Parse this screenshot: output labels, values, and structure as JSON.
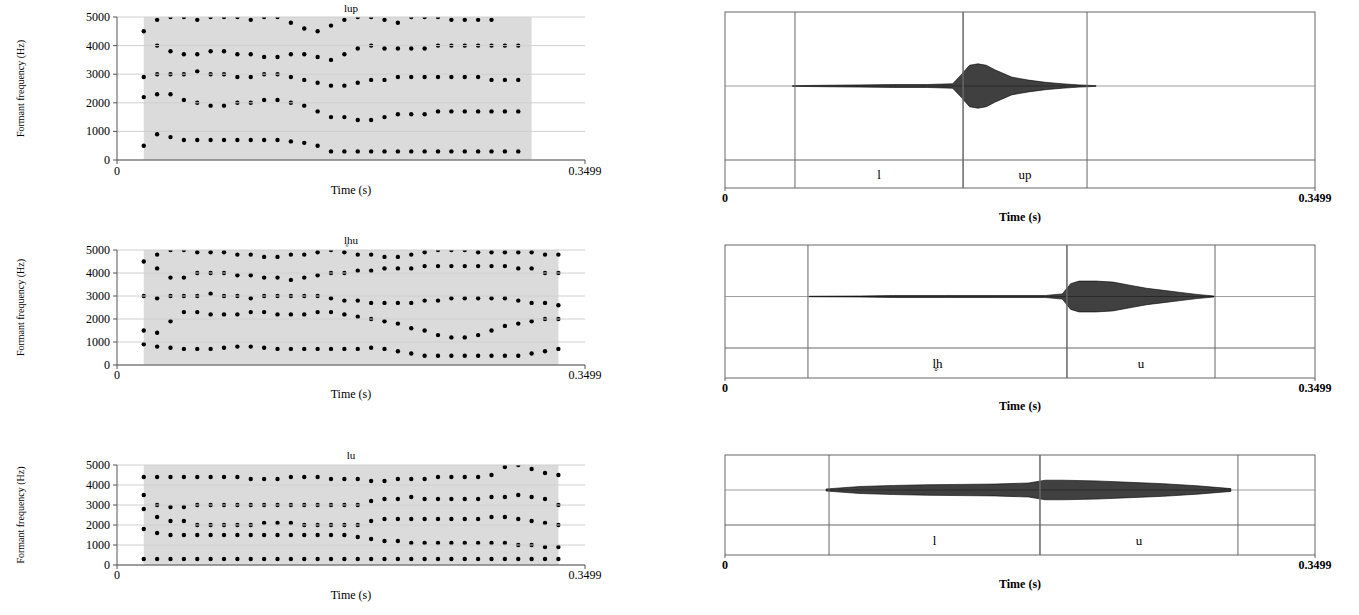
{
  "chart_data": [
    {
      "type": "scatter",
      "title": "lup",
      "x_label": "Time (s)",
      "y_label": "Formant frequency (Hz)",
      "x": [
        0.02,
        0.03,
        0.04,
        0.05,
        0.06,
        0.07,
        0.08,
        0.09,
        0.1,
        0.11,
        0.12,
        0.13,
        0.14,
        0.15,
        0.16,
        0.17,
        0.18,
        0.19,
        0.2,
        0.21,
        0.22,
        0.23,
        0.24,
        0.25,
        0.26,
        0.27,
        0.28,
        0.29,
        0.3,
        0.31
      ],
      "series": [
        {
          "color": "#000000",
          "values": [
            500,
            900,
            800,
            700,
            700,
            700,
            700,
            700,
            700,
            700,
            700,
            650,
            600,
            500,
            300,
            300,
            300,
            300,
            300,
            300,
            300,
            300,
            300,
            300,
            300,
            300,
            300,
            300,
            300,
            null
          ]
        },
        {
          "color": "#000000",
          "values": [
            2200,
            2300,
            2300,
            2100,
            2000,
            1900,
            1900,
            2000,
            2000,
            2100,
            2100,
            2000,
            1900,
            1700,
            1500,
            1500,
            1400,
            1400,
            1500,
            1600,
            1600,
            1600,
            1700,
            1700,
            1700,
            1700,
            1700,
            1700,
            1700,
            null
          ]
        },
        {
          "color": "#000000",
          "values": [
            2900,
            3000,
            3000,
            3000,
            3100,
            3000,
            3000,
            2900,
            2900,
            3000,
            3000,
            2900,
            2800,
            2700,
            2600,
            2600,
            2700,
            2800,
            2800,
            2900,
            2900,
            2900,
            2900,
            2900,
            2900,
            2900,
            2800,
            2800,
            2800,
            null
          ]
        },
        {
          "color": "#000000",
          "values": [
            4500,
            4000,
            3800,
            3700,
            3700,
            3800,
            3800,
            3700,
            3700,
            3600,
            3600,
            3700,
            3700,
            3600,
            3500,
            3700,
            3900,
            4000,
            3900,
            3900,
            3900,
            3900,
            4000,
            4000,
            4000,
            4000,
            4000,
            4000,
            4000,
            null
          ]
        },
        {
          "color": "#000000",
          "values": [
            null,
            4900,
            5000,
            5000,
            4900,
            5000,
            5000,
            5000,
            4900,
            5000,
            5000,
            4800,
            4600,
            4500,
            4700,
            4900,
            5000,
            5000,
            4900,
            4800,
            5000,
            5000,
            5000,
            4900,
            4900,
            4900,
            4900,
            null,
            null,
            null
          ]
        }
      ],
      "xlim": [
        0,
        0.3499
      ],
      "ylim": [
        0,
        5000
      ],
      "xticks": [
        0,
        0.3499
      ],
      "yticks": [
        0,
        1000,
        2000,
        3000,
        4000,
        5000
      ],
      "grid": true,
      "marker": "circle"
    },
    {
      "type": "scatter",
      "title": "l̥hu",
      "x_label": "Time (s)",
      "y_label": "Formant frequency (Hz)",
      "x": [
        0.02,
        0.03,
        0.04,
        0.05,
        0.06,
        0.07,
        0.08,
        0.09,
        0.1,
        0.11,
        0.12,
        0.13,
        0.14,
        0.15,
        0.16,
        0.17,
        0.18,
        0.19,
        0.2,
        0.21,
        0.22,
        0.23,
        0.24,
        0.25,
        0.26,
        0.27,
        0.28,
        0.29,
        0.3,
        0.31,
        0.32,
        0.33
      ],
      "series": [
        {
          "color": "#000000",
          "values": [
            900,
            800,
            750,
            700,
            700,
            700,
            750,
            800,
            800,
            750,
            700,
            700,
            700,
            700,
            700,
            700,
            700,
            750,
            700,
            600,
            500,
            400,
            400,
            400,
            400,
            400,
            400,
            400,
            400,
            500,
            600,
            700
          ]
        },
        {
          "color": "#000000",
          "values": [
            1500,
            1400,
            1900,
            2300,
            2300,
            2200,
            2200,
            2200,
            2300,
            2300,
            2200,
            2200,
            2200,
            2300,
            2300,
            2200,
            2100,
            2000,
            1900,
            1800,
            1600,
            1500,
            1300,
            1200,
            1200,
            1300,
            1500,
            1700,
            1800,
            1900,
            2000,
            2000
          ]
        },
        {
          "color": "#000000",
          "values": [
            3000,
            2900,
            3000,
            3000,
            3000,
            3100,
            3000,
            3000,
            2900,
            3000,
            3000,
            3000,
            3000,
            3000,
            2900,
            2800,
            2800,
            2700,
            2700,
            2700,
            2700,
            2800,
            2800,
            2900,
            2900,
            2900,
            2900,
            2900,
            2800,
            2700,
            2700,
            2600
          ]
        },
        {
          "color": "#000000",
          "values": [
            4500,
            4200,
            3800,
            3800,
            4000,
            4000,
            4000,
            3900,
            3900,
            3800,
            3800,
            3700,
            3800,
            3900,
            4000,
            4000,
            4100,
            4100,
            4200,
            4200,
            4200,
            4300,
            4300,
            4300,
            4300,
            4300,
            4300,
            4300,
            4200,
            4200,
            4000,
            4000
          ]
        },
        {
          "color": "#000000",
          "values": [
            null,
            4800,
            5000,
            5000,
            4900,
            4900,
            4900,
            4800,
            4800,
            4700,
            4700,
            4800,
            4800,
            4900,
            5000,
            4900,
            4800,
            4800,
            4700,
            4700,
            4800,
            4900,
            5000,
            5000,
            5000,
            4900,
            4900,
            4900,
            4900,
            4900,
            4800,
            4800
          ]
        }
      ],
      "xlim": [
        0,
        0.3499
      ],
      "ylim": [
        0,
        5000
      ],
      "xticks": [
        0,
        0.3499
      ],
      "yticks": [
        0,
        1000,
        2000,
        3000,
        4000,
        5000
      ],
      "grid": true,
      "marker": "circle"
    },
    {
      "type": "scatter",
      "title": "lu",
      "x_label": "Time (s)",
      "y_label": "Formant frequency (Hz)",
      "x": [
        0.02,
        0.03,
        0.04,
        0.05,
        0.06,
        0.07,
        0.08,
        0.09,
        0.1,
        0.11,
        0.12,
        0.13,
        0.14,
        0.15,
        0.16,
        0.17,
        0.18,
        0.19,
        0.2,
        0.21,
        0.22,
        0.23,
        0.24,
        0.25,
        0.26,
        0.27,
        0.28,
        0.29,
        0.3,
        0.31,
        0.32,
        0.33
      ],
      "series": [
        {
          "color": "#000000",
          "values": [
            300,
            300,
            300,
            300,
            300,
            300,
            300,
            300,
            300,
            300,
            300,
            300,
            300,
            300,
            300,
            300,
            300,
            300,
            300,
            300,
            300,
            300,
            300,
            300,
            300,
            300,
            300,
            300,
            300,
            300,
            300,
            300
          ]
        },
        {
          "color": "#000000",
          "values": [
            1800,
            1600,
            1500,
            1500,
            1500,
            1500,
            1500,
            1500,
            1500,
            1500,
            1500,
            1500,
            1500,
            1500,
            1500,
            1500,
            1400,
            1300,
            1200,
            1200,
            1100,
            1100,
            1100,
            1100,
            1100,
            1100,
            1100,
            1100,
            1000,
            1000,
            900,
            900
          ]
        },
        {
          "color": "#000000",
          "values": [
            2800,
            2400,
            2200,
            2200,
            2000,
            2000,
            2000,
            2000,
            2000,
            2100,
            2100,
            2100,
            2000,
            2000,
            2000,
            2000,
            2000,
            2200,
            2300,
            2300,
            2300,
            2300,
            2300,
            2300,
            2300,
            2300,
            2400,
            2400,
            2300,
            2200,
            2100,
            2000
          ]
        },
        {
          "color": "#000000",
          "values": [
            3500,
            3000,
            2900,
            2900,
            3000,
            3000,
            3000,
            3000,
            3000,
            3000,
            3000,
            3000,
            3000,
            3000,
            3000,
            3000,
            3000,
            3200,
            3300,
            3300,
            3400,
            3300,
            3300,
            3300,
            3300,
            3300,
            3400,
            3400,
            3500,
            3400,
            3300,
            3000
          ]
        },
        {
          "color": "#000000",
          "values": [
            4400,
            4400,
            4400,
            4400,
            4400,
            4400,
            4400,
            4400,
            4300,
            4300,
            4300,
            4400,
            4400,
            4400,
            4300,
            4300,
            4300,
            4200,
            4200,
            4300,
            4300,
            4300,
            4400,
            4400,
            4400,
            4400,
            4500,
            4900,
            5000,
            4800,
            4600,
            4500
          ]
        }
      ],
      "xlim": [
        0,
        0.3499
      ],
      "ylim": [
        0,
        5000
      ],
      "xticks": [
        0,
        0.3499
      ],
      "yticks": [
        0,
        1000,
        2000,
        3000,
        4000,
        5000
      ],
      "grid": true,
      "marker": "circle"
    },
    {
      "type": "area",
      "x_label": "Time (s)",
      "x": [
        0.04,
        0.06,
        0.08,
        0.1,
        0.12,
        0.135,
        0.14,
        0.145,
        0.15,
        0.155,
        0.16,
        0.17,
        0.18,
        0.19,
        0.2,
        0.21,
        0.22
      ],
      "values": [
        0.005,
        0.01,
        0.015,
        0.02,
        0.02,
        0.03,
        0.15,
        0.28,
        0.3,
        0.28,
        0.22,
        0.12,
        0.08,
        0.05,
        0.03,
        0.015,
        0.005
      ],
      "color": "#000000",
      "xlim": [
        0,
        0.3499
      ],
      "ylim": [
        -1,
        1
      ],
      "xticks": [
        0,
        0.3499
      ],
      "tick_labels": "x",
      "segments": [
        {
          "label": "l",
          "start": 0.0415,
          "end": 0.1412
        },
        {
          "label": "up",
          "start": 0.1412,
          "end": 0.2147
        }
      ]
    },
    {
      "type": "area",
      "x_label": "Time (s)",
      "x": [
        0.05,
        0.08,
        0.1,
        0.13,
        0.16,
        0.19,
        0.2,
        0.205,
        0.21,
        0.22,
        0.23,
        0.24,
        0.25,
        0.26,
        0.27,
        0.28,
        0.29
      ],
      "values": [
        0.005,
        0.01,
        0.02,
        0.02,
        0.02,
        0.02,
        0.05,
        0.25,
        0.3,
        0.3,
        0.28,
        0.22,
        0.16,
        0.12,
        0.08,
        0.04,
        0.01
      ],
      "color": "#000000",
      "xlim": [
        0,
        0.3499
      ],
      "ylim": [
        -1,
        1
      ],
      "xticks": [
        0,
        0.3499
      ],
      "tick_labels": "x",
      "segments": [
        {
          "label": "l̥h",
          "start": 0.0492,
          "end": 0.2028
        },
        {
          "label": "u",
          "start": 0.2028,
          "end": 0.2906
        }
      ]
    },
    {
      "type": "area",
      "x_label": "Time (s)",
      "x": [
        0.06,
        0.08,
        0.1,
        0.12,
        0.14,
        0.16,
        0.18,
        0.19,
        0.2,
        0.22,
        0.24,
        0.26,
        0.28,
        0.3
      ],
      "values": [
        0.03,
        0.1,
        0.13,
        0.15,
        0.16,
        0.17,
        0.2,
        0.28,
        0.28,
        0.26,
        0.22,
        0.18,
        0.12,
        0.04
      ],
      "color": "#000000",
      "xlim": [
        0,
        0.3499
      ],
      "ylim": [
        -1,
        1
      ],
      "xticks": [
        0,
        0.3499
      ],
      "tick_labels": "x",
      "segments": [
        {
          "label": "l",
          "start": 0.0617,
          "end": 0.1868
        },
        {
          "label": "u",
          "start": 0.1868,
          "end": 0.3042
        }
      ]
    }
  ]
}
